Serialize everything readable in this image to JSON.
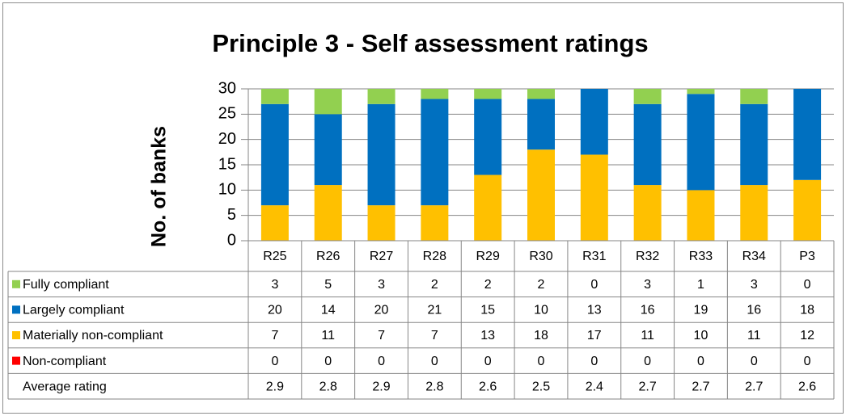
{
  "chart_data": {
    "type": "stacked_bar",
    "title": "Principle 3 - Self assessment ratings",
    "y_label": "No. of banks",
    "categories": [
      "R25",
      "R26",
      "R27",
      "R28",
      "R29",
      "R30",
      "R31",
      "R32",
      "R33",
      "R34",
      "P3"
    ],
    "series": [
      {
        "name": "Non-compliant",
        "color": "#ff0000",
        "values": [
          0,
          0,
          0,
          0,
          0,
          0,
          0,
          0,
          0,
          0,
          0
        ]
      },
      {
        "name": "Materially non-compliant",
        "color": "#ffc000",
        "values": [
          7,
          11,
          7,
          7,
          13,
          18,
          17,
          11,
          10,
          11,
          12
        ]
      },
      {
        "name": "Largely compliant",
        "color": "#0070c0",
        "values": [
          20,
          14,
          20,
          21,
          15,
          10,
          13,
          16,
          19,
          16,
          18
        ]
      },
      {
        "name": "Fully compliant",
        "color": "#92d050",
        "values": [
          3,
          5,
          3,
          2,
          2,
          2,
          0,
          3,
          1,
          3,
          0
        ]
      }
    ],
    "average_rating": {
      "name": "Average rating",
      "values": [
        2.9,
        2.8,
        2.9,
        2.8,
        2.6,
        2.5,
        2.4,
        2.7,
        2.7,
        2.7,
        2.6
      ]
    },
    "ylim": [
      0,
      30
    ],
    "yticks": [
      0,
      5,
      10,
      15,
      20,
      25,
      30
    ],
    "grid": true
  }
}
